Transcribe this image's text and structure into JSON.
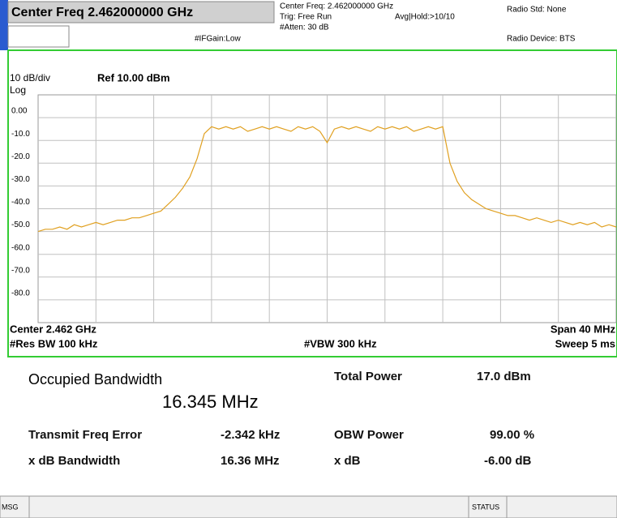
{
  "header": {
    "center_freq": "Center Freq  2.462000000 GHz",
    "if_gain": "#IFGain:Low",
    "center_freq_info": "Center Freq: 2.462000000 GHz",
    "trig": "Trig: Free Run",
    "avg_hold": "Avg|Hold:>10/10",
    "atten": "#Atten: 30 dB",
    "radio_std": "Radio Std: None",
    "radio_device": "Radio Device: BTS"
  },
  "chart_data": {
    "type": "line",
    "scale": "10 dB/div",
    "ref": "Ref 10.00 dBm",
    "scale_type": "Log",
    "ylim": [
      -90,
      10
    ],
    "yticks": [
      {
        "value": 0,
        "label": "0.00"
      },
      {
        "value": -10,
        "label": "-10.0"
      },
      {
        "value": -20,
        "label": "-20.0"
      },
      {
        "value": -30,
        "label": "-30.0"
      },
      {
        "value": -40,
        "label": "-40.0"
      },
      {
        "value": -50,
        "label": "-50.0"
      },
      {
        "value": -60,
        "label": "-60.0"
      },
      {
        "value": -70,
        "label": "-70.0"
      },
      {
        "value": -80,
        "label": "-80.0"
      }
    ],
    "grid": true,
    "color": "#e0a020",
    "values": [
      -50,
      -49,
      -49,
      -48,
      -49,
      -47,
      -48,
      -47,
      -46,
      -47,
      -46,
      -45,
      -45,
      -44,
      -44,
      -43,
      -42,
      -41,
      -38,
      -35,
      -31,
      -26,
      -18,
      -7,
      -4,
      -5,
      -4,
      -5,
      -4,
      -6,
      -5,
      -4,
      -5,
      -4,
      -5,
      -6,
      -4,
      -5,
      -4,
      -6,
      -11,
      -5,
      -4,
      -5,
      -4,
      -5,
      -6,
      -4,
      -5,
      -4,
      -5,
      -4,
      -6,
      -5,
      -4,
      -5,
      -4,
      -20,
      -28,
      -33,
      -36,
      -38,
      -40,
      -41,
      -42,
      -43,
      -43,
      -44,
      -45,
      -44,
      -45,
      -46,
      -45,
      -46,
      -47,
      -46,
      -47,
      -46,
      -48,
      -47,
      -48
    ],
    "center": "Center  2.462 GHz",
    "res_bw": "#Res BW  100 kHz",
    "vbw": "#VBW  300 kHz",
    "span": "Span 40 MHz",
    "sweep": "Sweep  5 ms"
  },
  "results": {
    "obw_label": "Occupied Bandwidth",
    "obw_value": "16.345 MHz",
    "total_power_label": "Total Power",
    "total_power_value": "17.0 dBm",
    "freq_error_label": "Transmit Freq Error",
    "freq_error_value": "-2.342 kHz",
    "obw_power_label": "OBW Power",
    "obw_power_value": "99.00 %",
    "xdb_bw_label": "x dB Bandwidth",
    "xdb_bw_value": "16.36 MHz",
    "xdb_label": "x dB",
    "xdb_value": "-6.00 dB"
  },
  "status_bar": {
    "msg": "MSG",
    "status": "STATUS"
  }
}
